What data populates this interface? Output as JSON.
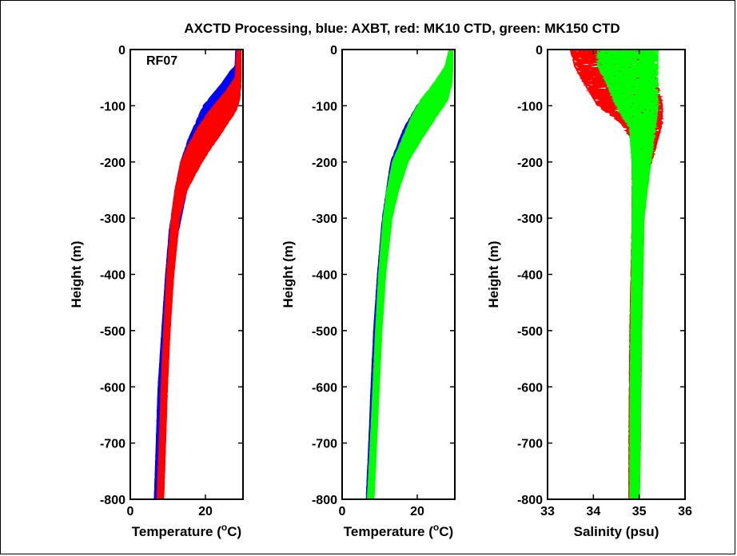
{
  "title": "AXCTD Processing, blue: AXBT, red: MK10 CTD, green: MK150 CTD",
  "chart_data": [
    {
      "type": "line",
      "annotation": "RF07",
      "xlabel_prefix": "Temperature (",
      "xlabel_sup": "o",
      "xlabel_suffix": "C)",
      "ylabel": "Height (m)",
      "xlim": [
        0,
        30
      ],
      "ylim": [
        -800,
        0
      ],
      "xticks": [
        "0",
        "20"
      ],
      "xtick_values": [
        0,
        20
      ],
      "yticks": [
        "0",
        "-100",
        "-200",
        "-300",
        "-400",
        "-500",
        "-600",
        "-700",
        "-800"
      ],
      "ytick_values": [
        0,
        -100,
        -200,
        -300,
        -400,
        -500,
        -600,
        -700,
        -800
      ],
      "series": [
        {
          "color": "#0000ff",
          "band": [
            {
              "y": 0,
              "min": 28.2,
              "max": 29.0
            },
            {
              "y": -30,
              "min": 28.0,
              "max": 29.0
            },
            {
              "y": -40,
              "min": 26.5,
              "max": 29.0
            },
            {
              "y": -60,
              "min": 24.5,
              "max": 29.0
            },
            {
              "y": -80,
              "min": 22.0,
              "max": 28.5
            },
            {
              "y": -100,
              "min": 19.5,
              "max": 26.5
            },
            {
              "y": -130,
              "min": 17.5,
              "max": 24.0
            },
            {
              "y": -160,
              "min": 15.5,
              "max": 21.0
            },
            {
              "y": -200,
              "min": 13.5,
              "max": 18.0
            },
            {
              "y": -250,
              "min": 12.0,
              "max": 15.0
            },
            {
              "y": -320,
              "min": 10.5,
              "max": 12.8
            },
            {
              "y": -400,
              "min": 9.5,
              "max": 11.0
            },
            {
              "y": -500,
              "min": 8.5,
              "max": 10.0
            },
            {
              "y": -600,
              "min": 7.5,
              "max": 9.2
            },
            {
              "y": -700,
              "min": 7.0,
              "max": 8.5
            },
            {
              "y": -800,
              "min": 6.5,
              "max": 7.8
            }
          ]
        },
        {
          "color": "#ff0000",
          "band": [
            {
              "y": 0,
              "min": 28.5,
              "max": 29.4
            },
            {
              "y": -50,
              "min": 28.0,
              "max": 29.4
            },
            {
              "y": -70,
              "min": 26.0,
              "max": 29.3
            },
            {
              "y": -90,
              "min": 23.5,
              "max": 29.0
            },
            {
              "y": -110,
              "min": 21.0,
              "max": 28.0
            },
            {
              "y": -140,
              "min": 18.0,
              "max": 25.0
            },
            {
              "y": -170,
              "min": 15.5,
              "max": 22.0
            },
            {
              "y": -200,
              "min": 13.5,
              "max": 19.0
            },
            {
              "y": -250,
              "min": 12.0,
              "max": 15.0
            },
            {
              "y": -300,
              "min": 11.0,
              "max": 13.0
            },
            {
              "y": -400,
              "min": 9.8,
              "max": 11.5
            },
            {
              "y": -500,
              "min": 9.0,
              "max": 10.5
            },
            {
              "y": -600,
              "min": 8.3,
              "max": 9.8
            },
            {
              "y": -700,
              "min": 7.8,
              "max": 9.3
            },
            {
              "y": -800,
              "min": 7.2,
              "max": 8.8
            }
          ]
        }
      ]
    },
    {
      "type": "line",
      "xlabel_prefix": "Temperature (",
      "xlabel_sup": "o",
      "xlabel_suffix": "C)",
      "ylabel": "Height (m)",
      "xlim": [
        0,
        30
      ],
      "ylim": [
        -800,
        0
      ],
      "xticks": [
        "0",
        "20"
      ],
      "xtick_values": [
        0,
        20
      ],
      "yticks": [
        "0",
        "-100",
        "-200",
        "-300",
        "-400",
        "-500",
        "-600",
        "-700",
        "-800"
      ],
      "ytick_values": [
        0,
        -100,
        -200,
        -300,
        -400,
        -500,
        -600,
        -700,
        -800
      ],
      "series": [
        {
          "color": "#0000ff",
          "band": [
            {
              "y": -60,
              "min": 26.0,
              "max": 29.0
            },
            {
              "y": -100,
              "min": 20.0,
              "max": 26.5
            },
            {
              "y": -140,
              "min": 16.5,
              "max": 22.0
            },
            {
              "y": -200,
              "min": 13.0,
              "max": 16.5
            },
            {
              "y": -300,
              "min": 10.8,
              "max": 13.0
            },
            {
              "y": -400,
              "min": 9.5,
              "max": 11.2
            },
            {
              "y": -500,
              "min": 8.5,
              "max": 10.2
            },
            {
              "y": -600,
              "min": 7.8,
              "max": 9.3
            },
            {
              "y": -700,
              "min": 7.2,
              "max": 8.7
            },
            {
              "y": -800,
              "min": 6.5,
              "max": 8.0
            }
          ]
        },
        {
          "color": "#00ff00",
          "band": [
            {
              "y": 0,
              "min": 28.6,
              "max": 29.4
            },
            {
              "y": -30,
              "min": 27.5,
              "max": 29.4
            },
            {
              "y": -60,
              "min": 24.5,
              "max": 29.2
            },
            {
              "y": -90,
              "min": 21.0,
              "max": 28.0
            },
            {
              "y": -120,
              "min": 18.5,
              "max": 25.0
            },
            {
              "y": -160,
              "min": 16.0,
              "max": 21.0
            },
            {
              "y": -200,
              "min": 13.5,
              "max": 17.5
            },
            {
              "y": -250,
              "min": 12.0,
              "max": 15.0
            },
            {
              "y": -300,
              "min": 11.0,
              "max": 13.2
            },
            {
              "y": -400,
              "min": 9.8,
              "max": 11.5
            },
            {
              "y": -500,
              "min": 9.0,
              "max": 10.5
            },
            {
              "y": -600,
              "min": 8.3,
              "max": 9.8
            },
            {
              "y": -700,
              "min": 7.6,
              "max": 9.1
            },
            {
              "y": -800,
              "min": 6.8,
              "max": 8.4
            }
          ]
        }
      ]
    },
    {
      "type": "line",
      "xlabel": "Salinity (psu)",
      "ylabel": "Height (m)",
      "xlim": [
        33,
        36
      ],
      "ylim": [
        -800,
        0
      ],
      "xticks": [
        "33",
        "34",
        "35",
        "36"
      ],
      "xtick_values": [
        33,
        34,
        35,
        36
      ],
      "yticks": [
        "0",
        "-100",
        "-200",
        "-300",
        "-400",
        "-500",
        "-600",
        "-700",
        "-800"
      ],
      "ytick_values": [
        0,
        -100,
        -200,
        -300,
        -400,
        -500,
        -600,
        -700,
        -800
      ],
      "series": [
        {
          "color": "#ff0000",
          "band": [
            {
              "y": 0,
              "min": 33.5,
              "max": 35.2
            },
            {
              "y": -30,
              "min": 33.6,
              "max": 35.3
            },
            {
              "y": -60,
              "min": 33.8,
              "max": 35.4
            },
            {
              "y": -100,
              "min": 34.1,
              "max": 35.5
            },
            {
              "y": -130,
              "min": 34.6,
              "max": 35.5
            },
            {
              "y": -160,
              "min": 34.85,
              "max": 35.4
            },
            {
              "y": -220,
              "min": 34.85,
              "max": 35.2
            },
            {
              "y": -300,
              "min": 34.85,
              "max": 35.1
            },
            {
              "y": -500,
              "min": 34.8,
              "max": 35.05
            },
            {
              "y": -700,
              "min": 34.78,
              "max": 35.02
            },
            {
              "y": -800,
              "min": 34.78,
              "max": 35.0
            }
          ]
        },
        {
          "color": "#00ff00",
          "band": [
            {
              "y": 0,
              "min": 34.1,
              "max": 35.4
            },
            {
              "y": -30,
              "min": 34.1,
              "max": 35.4
            },
            {
              "y": -60,
              "min": 34.3,
              "max": 35.4
            },
            {
              "y": -100,
              "min": 34.5,
              "max": 35.4
            },
            {
              "y": -140,
              "min": 34.8,
              "max": 35.35
            },
            {
              "y": -200,
              "min": 34.85,
              "max": 35.25
            },
            {
              "y": -300,
              "min": 34.85,
              "max": 35.1
            },
            {
              "y": -500,
              "min": 34.82,
              "max": 35.05
            },
            {
              "y": -700,
              "min": 34.8,
              "max": 35.02
            },
            {
              "y": -800,
              "min": 34.8,
              "max": 35.0
            }
          ]
        }
      ]
    }
  ]
}
